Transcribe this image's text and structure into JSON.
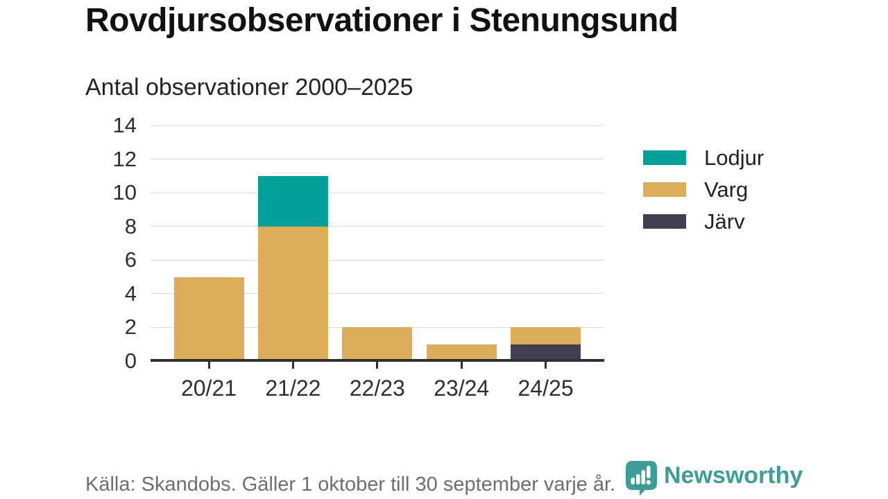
{
  "header": {
    "title": "Rovdjursobservationer i Stenungsund",
    "subtitle": "Antal observationer 2000–2025"
  },
  "footer": {
    "source": "Källa: Skandobs. Gäller 1 oktober till 30 september varje år.",
    "brand": "Newsworthy"
  },
  "colors": {
    "axis": "#2f2f2f",
    "grid": "#d8d8d8",
    "title_text": "#111111",
    "subtitle_text": "#222222",
    "tick_label": "#2e2e2e",
    "source_text": "#6a6f75",
    "brand_teal": "#3e9d97",
    "lodjur_teal": "#00a096",
    "varg_gold": "#ddae5a",
    "jarv_dark": "#413f50"
  },
  "chart_data": {
    "type": "bar",
    "stacked": true,
    "title": "Rovdjursobservationer i Stenungsund",
    "subtitle": "Antal observationer 2000–2025",
    "categories": [
      "20/21",
      "21/22",
      "22/23",
      "23/24",
      "24/25"
    ],
    "series": [
      {
        "name": "Lodjur",
        "color": "#00a096",
        "values": [
          0,
          3,
          0,
          0,
          0
        ]
      },
      {
        "name": "Varg",
        "color": "#ddae5a",
        "values": [
          5,
          8,
          2,
          1,
          1
        ]
      },
      {
        "name": "Järv",
        "color": "#413f50",
        "values": [
          0,
          0,
          0,
          0,
          1
        ]
      }
    ],
    "stack_order_bottom_to_top": [
      "Järv",
      "Varg",
      "Lodjur"
    ],
    "totals": [
      5,
      11,
      2,
      1,
      2
    ],
    "xlabel": "",
    "ylabel": "",
    "ylim": [
      0,
      14
    ],
    "ytick_step": 2,
    "grid": true,
    "legend_position": "right"
  }
}
